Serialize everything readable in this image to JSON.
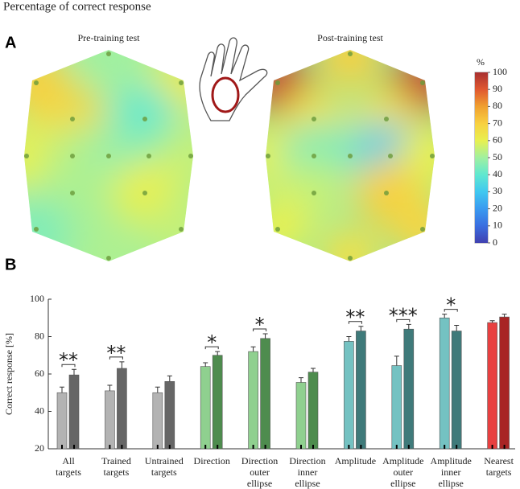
{
  "title": "Percentage of correct response",
  "panel_labels": [
    "A",
    "B"
  ],
  "colorbar": {
    "label": "%",
    "lim": [
      0,
      100
    ],
    "ticks": [
      0,
      10,
      20,
      30,
      40,
      50,
      60,
      70,
      80,
      90,
      100
    ],
    "colors": [
      "#4040b0",
      "#3a6ee0",
      "#3a9af0",
      "#40c8f0",
      "#60e8d0",
      "#a0f0a0",
      "#e8f050",
      "#f8d040",
      "#f0a030",
      "#e05830",
      "#a83030"
    ]
  },
  "chart_data": [
    {
      "type": "heatmap",
      "title": "Pre-training test",
      "values": [
        50,
        70,
        62,
        68,
        40,
        60,
        55,
        50,
        45,
        55,
        52,
        60,
        45,
        55,
        52
      ]
    },
    {
      "type": "heatmap",
      "title": "Post-training test",
      "values": [
        70,
        95,
        95,
        65,
        65,
        60,
        45,
        45,
        30,
        60,
        55,
        70,
        60,
        68,
        65
      ]
    },
    {
      "type": "bar",
      "ylabel": "Correct response [%]",
      "categories": [
        [
          "All",
          "targets"
        ],
        [
          "Trained",
          "targets"
        ],
        [
          "Untrained",
          "targets"
        ],
        [
          "Direction"
        ],
        [
          "Direction",
          "outer",
          "ellipse"
        ],
        [
          "Direction",
          "inner",
          "ellipse"
        ],
        [
          "Amplitude"
        ],
        [
          "Amplitude",
          "outer",
          "ellipse"
        ],
        [
          "Amplitude",
          "inner",
          "ellipse"
        ],
        [
          "Nearest",
          "targets"
        ]
      ],
      "series": [
        {
          "colors": [
            "#b3b3b3",
            "#b3b3b3",
            "#b3b3b3",
            "#8fd08f",
            "#8fd08f",
            "#8fd08f",
            "#74c2c2",
            "#74c2c2",
            "#74c2c2",
            "#e84040"
          ],
          "values": [
            50,
            51,
            50,
            64,
            72,
            55.5,
            77.5,
            64.5,
            90,
            87.5
          ],
          "errors": [
            3,
            3,
            3,
            2,
            2.5,
            2.5,
            2.5,
            5,
            2,
            1
          ]
        },
        {
          "colors": [
            "#666666",
            "#666666",
            "#666666",
            "#4e8c4e",
            "#4e8c4e",
            "#4e8c4e",
            "#3f7a7a",
            "#3f7a7a",
            "#3f7a7a",
            "#a82424"
          ],
          "values": [
            59.5,
            63,
            56,
            70,
            79,
            61,
            83,
            84,
            83,
            90.5
          ],
          "errors": [
            3,
            3.5,
            3,
            2,
            2.5,
            2,
            2.5,
            2.5,
            3,
            1.5
          ]
        }
      ],
      "significance": [
        "**",
        "**",
        null,
        "*",
        "*",
        null,
        "**",
        "***",
        "*",
        null
      ],
      "ylim": [
        20,
        100
      ],
      "yticks": [
        20,
        40,
        60,
        80,
        100
      ]
    }
  ]
}
